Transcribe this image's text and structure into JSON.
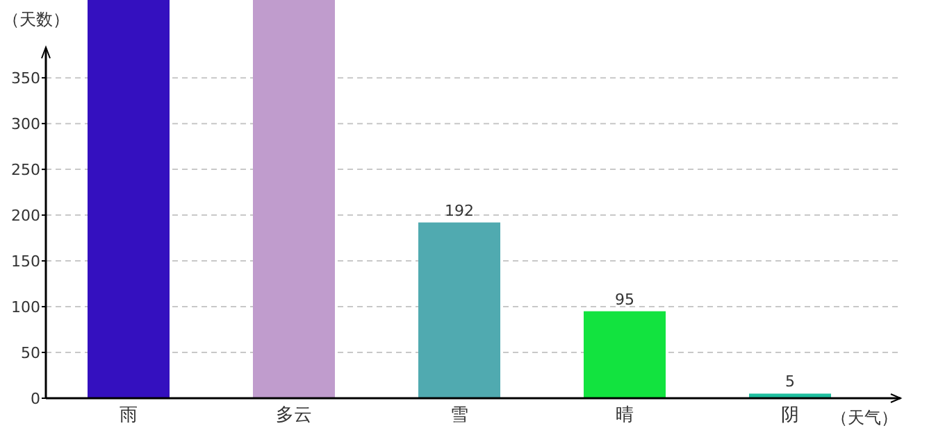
{
  "chart_data": {
    "type": "bar",
    "ylabel": "（天数）",
    "xlabel": "（天气）",
    "categories": [
      "雨",
      "多云",
      "雪",
      "晴",
      "阴"
    ],
    "values": [
      435,
      435,
      192,
      95,
      5
    ],
    "value_labels": [
      null,
      null,
      "192",
      "95",
      "5"
    ],
    "colors": [
      "#3410bf",
      "#c09ccd",
      "#50aab0",
      "#12e33f",
      "#1fbf9f"
    ],
    "ylim": [
      0,
      435
    ],
    "yticks": [
      0,
      50,
      100,
      150,
      200,
      250,
      300,
      350
    ],
    "grid": "y"
  }
}
